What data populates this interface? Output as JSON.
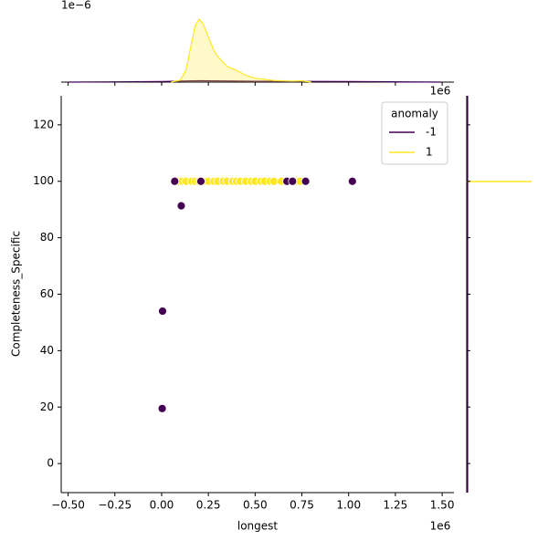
{
  "chart_data": {
    "type": "scatter",
    "xlabel": "longest",
    "ylabel": "Completeness_Specific",
    "x_offset": "1e6",
    "top_y_offset": "1e−6",
    "legend_title": "anomaly",
    "legend_loc": "upper right",
    "xlim": [
      -0.537,
      1.563
    ],
    "ylim": [
      -10.3,
      130.3
    ],
    "xticks": [
      {
        "value": -0.5,
        "label": "−0.50"
      },
      {
        "value": -0.25,
        "label": "−0.25"
      },
      {
        "value": 0,
        "label": "0.00"
      },
      {
        "value": 0.25,
        "label": "0.25"
      },
      {
        "value": 0.5,
        "label": "0.50"
      },
      {
        "value": 0.75,
        "label": "0.75"
      },
      {
        "value": 1.0,
        "label": "1.00"
      },
      {
        "value": 1.25,
        "label": "1.25"
      },
      {
        "value": 1.5,
        "label": "1.50"
      }
    ],
    "yticks": [
      0,
      20,
      40,
      60,
      80,
      100,
      120
    ],
    "series": [
      {
        "name": "-1",
        "color": "#440154",
        "x": [
          0.07,
          0.105,
          0.005,
          0.003,
          0.21,
          0.67,
          0.7,
          0.77,
          1.02
        ],
        "values": [
          100,
          91.3,
          54,
          19.5,
          100,
          100,
          100,
          100,
          100
        ]
      },
      {
        "name": "1",
        "color": "#fde725",
        "x": [
          0.09,
          0.11,
          0.13,
          0.16,
          0.18,
          0.2,
          0.23,
          0.25,
          0.28,
          0.3,
          0.33,
          0.35,
          0.38,
          0.4,
          0.42,
          0.45,
          0.48,
          0.5,
          0.53,
          0.55,
          0.58,
          0.6,
          0.64,
          0.67,
          0.72,
          0.74
        ],
        "values": [
          100,
          100,
          100,
          100,
          100,
          100,
          100,
          100,
          100,
          100,
          100,
          100,
          100,
          100,
          100,
          100,
          100,
          100,
          100,
          100,
          100,
          100,
          100,
          100,
          100,
          100
        ]
      }
    ],
    "top_ylim": [
      0,
      4
    ],
    "top_density": [
      {
        "x": [
          -0.5,
          0,
          0.2,
          0.5,
          1.0,
          1.5
        ],
        "values": [
          0,
          0.03,
          0.07,
          0.04,
          0.03,
          0
        ]
      },
      {
        "x": [
          0.05,
          0.1,
          0.13,
          0.16,
          0.18,
          0.2,
          0.22,
          0.25,
          0.28,
          0.3,
          0.35,
          0.4,
          0.45,
          0.5,
          0.6,
          0.7,
          0.75,
          0.8
        ],
        "values": [
          0,
          0.1,
          0.6,
          2.0,
          2.9,
          3.2,
          3.0,
          2.3,
          1.6,
          1.3,
          0.8,
          0.6,
          0.35,
          0.2,
          0.08,
          0.05,
          0.07,
          0
        ]
      }
    ]
  }
}
